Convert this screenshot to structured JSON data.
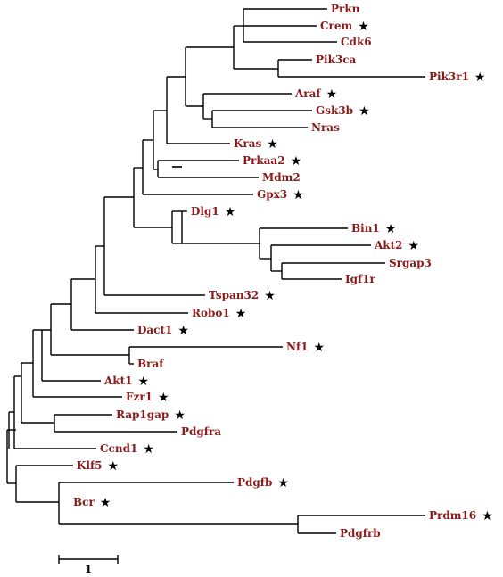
{
  "colors": {
    "label": "#8b1a1a",
    "branch": "#000000",
    "star": "#000000"
  },
  "star_symbol": "★",
  "leaves": [
    {
      "id": "prkn",
      "label": "Prkn",
      "star": false
    },
    {
      "id": "crem",
      "label": "Crem",
      "star": true
    },
    {
      "id": "cdk6",
      "label": "Cdk6",
      "star": false
    },
    {
      "id": "pik3ca",
      "label": "Pik3ca",
      "star": false
    },
    {
      "id": "pik3r1",
      "label": "Pik3r1",
      "star": true
    },
    {
      "id": "araf",
      "label": "Araf",
      "star": true
    },
    {
      "id": "gsk3b",
      "label": "Gsk3b",
      "star": true
    },
    {
      "id": "nras",
      "label": "Nras",
      "star": false
    },
    {
      "id": "kras",
      "label": "Kras",
      "star": true
    },
    {
      "id": "prkaa2",
      "label": "Prkaa2",
      "star": true
    },
    {
      "id": "mdm2",
      "label": "Mdm2",
      "star": false
    },
    {
      "id": "gpx3",
      "label": "Gpx3",
      "star": true
    },
    {
      "id": "dlg1",
      "label": "Dlg1",
      "star": true
    },
    {
      "id": "bin1",
      "label": "Bin1",
      "star": true
    },
    {
      "id": "akt2",
      "label": "Akt2",
      "star": true
    },
    {
      "id": "srgap3",
      "label": "Srgap3",
      "star": false
    },
    {
      "id": "igf1r",
      "label": "Igf1r",
      "star": false
    },
    {
      "id": "tspan32",
      "label": "Tspan32",
      "star": true
    },
    {
      "id": "robo1",
      "label": "Robo1",
      "star": true
    },
    {
      "id": "dact1",
      "label": "Dact1",
      "star": true
    },
    {
      "id": "nf1",
      "label": "Nf1",
      "star": true
    },
    {
      "id": "braf",
      "label": "Braf",
      "star": false
    },
    {
      "id": "akt1",
      "label": "Akt1",
      "star": true
    },
    {
      "id": "fzr1",
      "label": "Fzr1",
      "star": true
    },
    {
      "id": "rap1gap",
      "label": "Rap1gap",
      "star": true
    },
    {
      "id": "pdgfra",
      "label": "Pdgfra",
      "star": false
    },
    {
      "id": "ccnd1",
      "label": "Ccnd1",
      "star": true
    },
    {
      "id": "klf5",
      "label": "Klf5",
      "star": true
    },
    {
      "id": "pdgfb",
      "label": "Pdgfb",
      "star": true
    },
    {
      "id": "bcr",
      "label": "Bcr",
      "star": true
    },
    {
      "id": "prdm16",
      "label": "Prdm16",
      "star": true
    },
    {
      "id": "pdgfrb",
      "label": "Pdgfrb",
      "star": false
    }
  ],
  "scale_bar": {
    "label": "1"
  }
}
